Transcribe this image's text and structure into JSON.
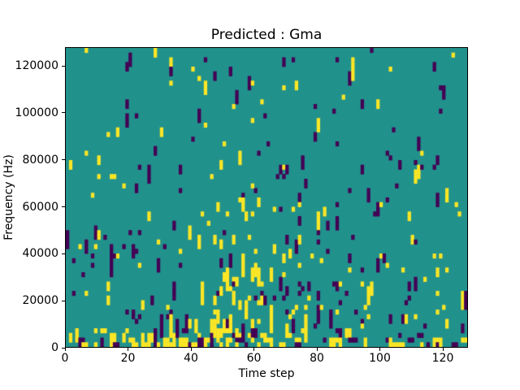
{
  "plot": {
    "title": "Predicted : Gma",
    "xlabel": "Time step",
    "ylabel": "Frequency (Hz)"
  },
  "chart_data": {
    "type": "heatmap",
    "title": "Predicted : Gma",
    "xlabel": "Time step",
    "ylabel": "Frequency (Hz)",
    "xlim": [
      0,
      128
    ],
    "ylim": [
      0,
      128000
    ],
    "x_ticks": [
      0,
      20,
      40,
      60,
      80,
      100,
      120
    ],
    "x_tick_labels": [
      "0",
      "20",
      "40",
      "60",
      "80",
      "100",
      "120"
    ],
    "y_ticks": [
      0,
      20000,
      40000,
      60000,
      80000,
      100000,
      120000
    ],
    "y_tick_labels": [
      "0",
      "20000",
      "40000",
      "60000",
      "80000",
      "100000",
      "120000"
    ],
    "grid_rows": 64,
    "grid_cols": 128,
    "colormap": "viridis",
    "cell_classes": [
      {
        "name": "low",
        "value": 0,
        "color": "#440154"
      },
      {
        "name": "mid",
        "value": 1,
        "color": "#21918c"
      },
      {
        "name": "high",
        "value": 2,
        "color": "#fde725"
      }
    ],
    "background_class": "mid",
    "legend": "none",
    "grid_lines": false,
    "pattern": {
      "description": "Sparse random scatter of single-column low(purple)/high(yellow) cells, often in vertical runs of 2-3, over a mid(teal) background. Density increases toward low frequencies. Dense yellow vertical streaks near time steps 46-62 below ~70000 Hz, extra purple streaks near time steps 63-80, and a very dense mixed band of 2-cell-wide blocks in the bottom two frequency rows.",
      "seed": 1337,
      "run_down_probability": 0.38,
      "run_right_probability_bottom": 0.5,
      "base_regions": [
        {
          "rows": [
            24,
            63
          ],
          "p_high": 0.01,
          "p_low": 0.012
        },
        {
          "rows": [
            12,
            23
          ],
          "p_high": 0.02,
          "p_low": 0.02
        },
        {
          "rows": [
            4,
            11
          ],
          "p_high": 0.03,
          "p_low": 0.026
        },
        {
          "rows": [
            2,
            3
          ],
          "p_high": 0.05,
          "p_low": 0.04
        },
        {
          "rows": [
            0,
            1
          ],
          "p_high": 0.13,
          "p_low": 0.11
        }
      ],
      "boosts": [
        {
          "rows": [
            2,
            36
          ],
          "cols": [
            46,
            62
          ],
          "high_mult": 5.0,
          "low_mult": 1.6
        },
        {
          "rows": [
            8,
            40
          ],
          "cols": [
            63,
            80
          ],
          "high_mult": 1.4,
          "low_mult": 2.6
        },
        {
          "rows": [
            0,
            3
          ],
          "cols": [
            0,
            56
          ],
          "high_mult": 1.8,
          "low_mult": 1.7
        }
      ]
    }
  }
}
